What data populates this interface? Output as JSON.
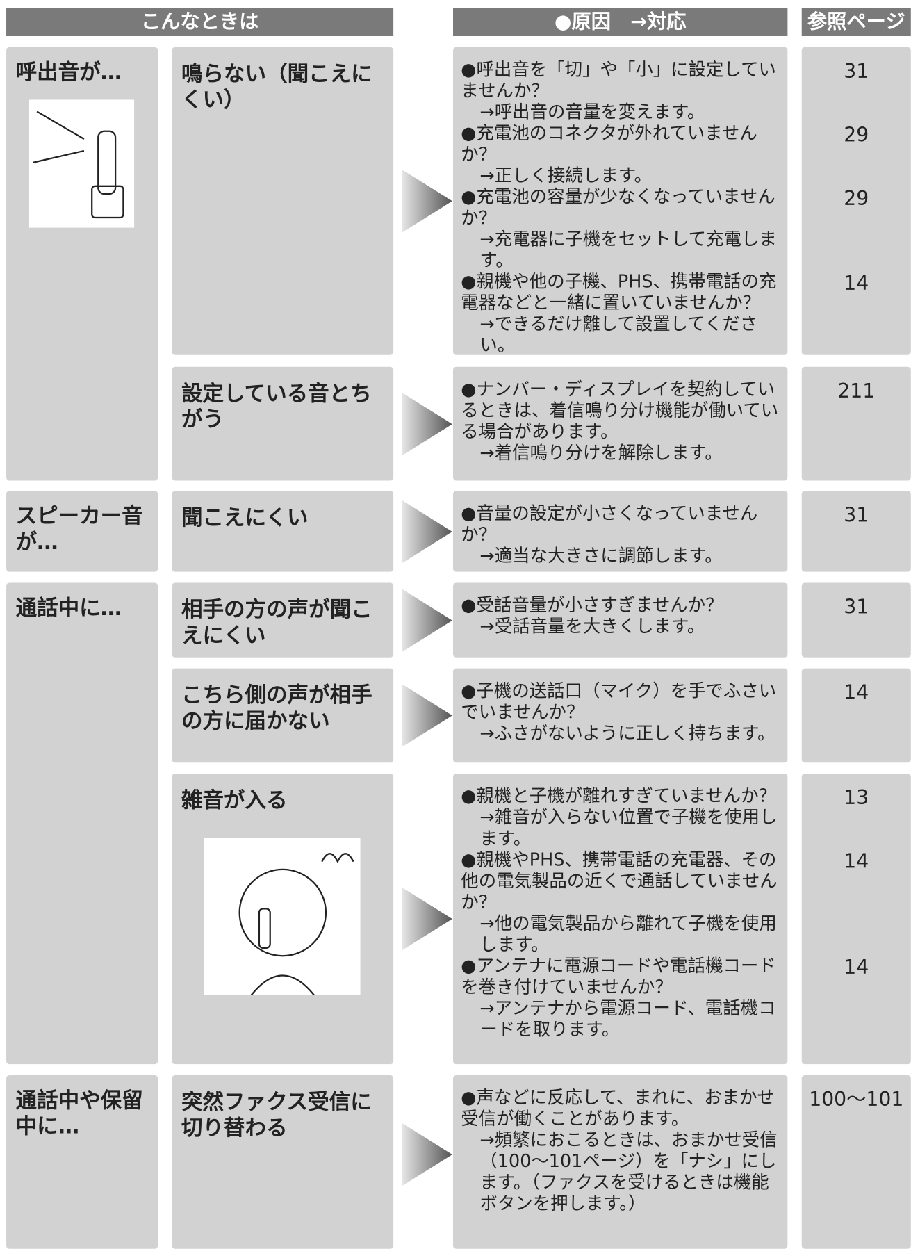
{
  "headers": [
    "こんなときは",
    "●原因　→対応",
    "参照ページ"
  ],
  "groups": [
    {
      "label": "呼出音が…",
      "items": [
        {
          "symptom": "鳴らない（聞こえにくい）",
          "causes": [
            {
              "cause": "●呼出音を「切」や「小」に設定していませんか？",
              "remedy": "→呼出音の音量を変えます。",
              "page": "31"
            },
            {
              "cause": "●充電池のコネクタが外れていませんか？",
              "remedy": "→正しく接続します。",
              "page": "29"
            },
            {
              "cause": "●充電池の容量が少なくなっていませんか？",
              "remedy": "→充電器に子機をセットして充電します。",
              "page": "29"
            },
            {
              "cause": "●親機や他の子機、PHS、携帯電話の充電器などと一緒に置いていませんか？",
              "remedy": "→できるだけ離して設置してください。",
              "page": "14"
            }
          ]
        },
        {
          "symptom": "設定している音とちがう",
          "causes": [
            {
              "cause": "●ナンバー・ディスプレイを契約しているときは、着信鳴り分け機能が働いている場合があります。",
              "remedy": "→着信鳴り分けを解除します。",
              "page": "211"
            }
          ]
        }
      ]
    },
    {
      "label": "スピーカー音が…",
      "items": [
        {
          "symptom": "聞こえにくい",
          "causes": [
            {
              "cause": "●音量の設定が小さくなっていませんか？",
              "remedy": "→適当な大きさに調節します。",
              "page": "31"
            }
          ]
        }
      ]
    },
    {
      "label": "通話中に…",
      "items": [
        {
          "symptom": "相手の方の声が聞こえにくい",
          "causes": [
            {
              "cause": "●受話音量が小さすぎませんか？",
              "remedy": "→受話音量を大きくします。",
              "page": "31"
            }
          ]
        },
        {
          "symptom": "こちら側の声が相手の方に届かない",
          "causes": [
            {
              "cause": "●子機の送話口（マイク）を手でふさいでいませんか？",
              "remedy": "→ふさがないように正しく持ちます。",
              "page": "14"
            }
          ]
        },
        {
          "symptom": "雑音が入る",
          "causes": [
            {
              "cause": "●親機と子機が離れすぎていませんか？",
              "remedy": "→雑音が入らない位置で子機を使用します。",
              "page": "13"
            },
            {
              "cause": "●親機やPHS、携帯電話の充電器、その他の電気製品の近くで通話していませんか？",
              "remedy": "→他の電気製品から離れて子機を使用します。",
              "page": "14"
            },
            {
              "cause": "●アンテナに電源コードや電話機コードを巻き付けていませんか？",
              "remedy": "→アンテナから電源コード、電話機コードを取ります。",
              "page": "14"
            }
          ]
        }
      ]
    },
    {
      "label": "通話中や保留中に…",
      "items": [
        {
          "symptom": "突然ファクス受信に切り替わる",
          "causes": [
            {
              "cause": "●声などに反応して、まれに、おまかせ受信が働くことがあります。",
              "remedy": "→頻繁におこるときは、おまかせ受信（100〜101ページ）を「ナシ」にします。（ファクスを受けるときは機能ボタンを押します。）",
              "page": "100〜101"
            }
          ]
        }
      ]
    }
  ]
}
